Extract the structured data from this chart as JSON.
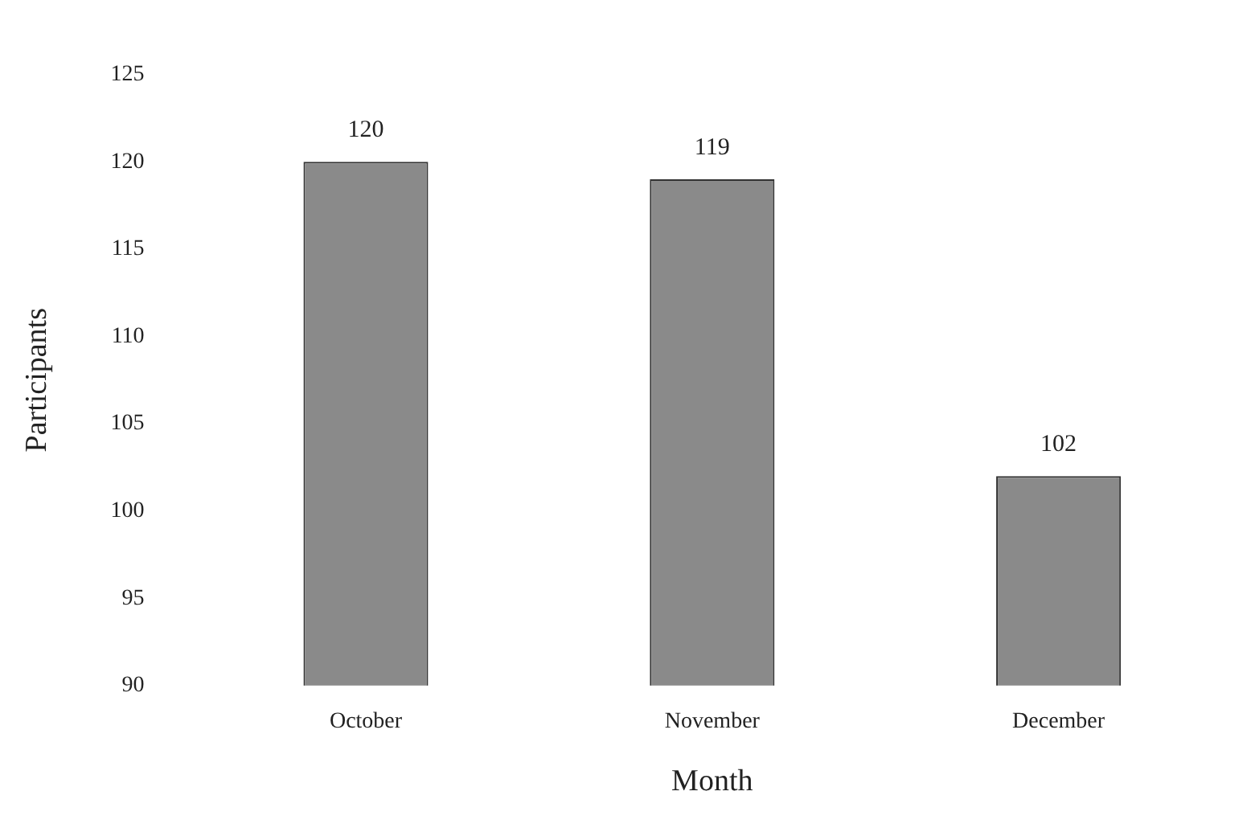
{
  "chart_data": {
    "type": "bar",
    "xlabel": "Month",
    "ylabel": "Participants",
    "categories": [
      "October",
      "November",
      "December"
    ],
    "values": [
      120,
      119,
      102
    ],
    "color": "#8a8a8a",
    "ylim": [
      90,
      125
    ],
    "yticks": [
      90,
      95,
      100,
      105,
      110,
      115,
      120,
      125
    ],
    "grid": false,
    "data_labels": true
  }
}
